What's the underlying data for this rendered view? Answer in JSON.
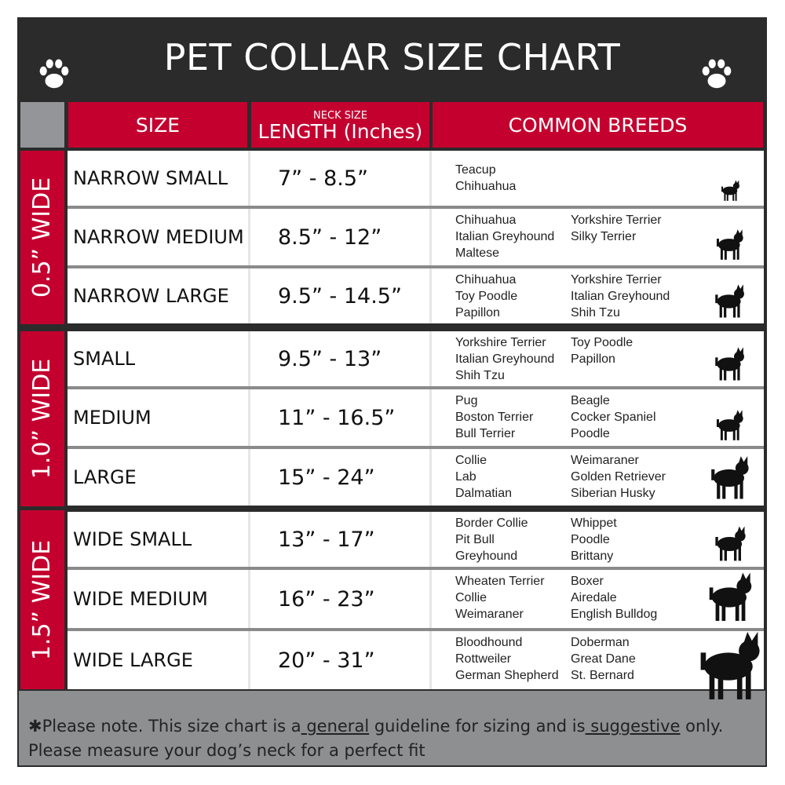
{
  "title": "PET COLLAR SIZE CHART",
  "icons": {
    "left": "paw-print-icon",
    "right": "paw-print-icon",
    "dog": "dog-silhouette-icon"
  },
  "colors": {
    "header_red": "#c4002f",
    "dark": "#2b2b2b",
    "footer_gray": "#8e8f91"
  },
  "headers": {
    "size": "SIZE",
    "length_top": "NECK SIZE",
    "length": "LENGTH (Inches)",
    "breeds": "COMMON BREEDS"
  },
  "groups": [
    "0.5” WIDE",
    "1.0” WIDE",
    "1.5” WIDE"
  ],
  "rows": [
    {
      "size": "NARROW SMALL",
      "length": "7” - 8.5”",
      "breeds_a": [
        "Teacup",
        "Chihuahua"
      ],
      "breeds_b": []
    },
    {
      "size": "NARROW MEDIUM",
      "length": "8.5” - 12”",
      "breeds_a": [
        "Chihuahua",
        "Italian Greyhound",
        "Maltese"
      ],
      "breeds_b": [
        "Yorkshire Terrier",
        "Silky Terrier"
      ]
    },
    {
      "size": "NARROW LARGE",
      "length": "9.5” - 14.5”",
      "breeds_a": [
        "Chihuahua",
        "Toy Poodle",
        "Papillon"
      ],
      "breeds_b": [
        "Yorkshire Terrier",
        "Italian Greyhound",
        "Shih Tzu"
      ]
    },
    {
      "size": "SMALL",
      "length": "9.5” - 13”",
      "breeds_a": [
        "Yorkshire Terrier",
        "Italian Greyhound",
        "Shih Tzu"
      ],
      "breeds_b": [
        "Toy Poodle",
        "Papillon"
      ]
    },
    {
      "size": "MEDIUM",
      "length": "11” - 16.5”",
      "breeds_a": [
        "Pug",
        "Boston Terrier",
        "Bull Terrier"
      ],
      "breeds_b": [
        "Beagle",
        "Cocker Spaniel",
        "Poodle"
      ]
    },
    {
      "size": "LARGE",
      "length": "15” - 24”",
      "breeds_a": [
        "Collie",
        "Lab",
        "Dalmatian"
      ],
      "breeds_b": [
        "Weimaraner",
        "Golden Retriever",
        "Siberian Husky"
      ]
    },
    {
      "size": "WIDE SMALL",
      "length": "13” - 17”",
      "breeds_a": [
        "Border Collie",
        "Pit Bull",
        "Greyhound"
      ],
      "breeds_b": [
        "Whippet",
        "Poodle",
        "Brittany"
      ]
    },
    {
      "size": "WIDE MEDIUM",
      "length": "16” - 23”",
      "breeds_a": [
        "Wheaten Terrier",
        "Collie",
        "Weimaraner"
      ],
      "breeds_b": [
        "Boxer",
        "Airedale",
        "English Bulldog"
      ]
    },
    {
      "size": "WIDE LARGE",
      "length": "20” - 31”",
      "breeds_a": [
        "Bloodhound",
        "Rottweiler",
        "German Shepherd"
      ],
      "breeds_b": [
        "Doberman",
        "Great Dane",
        "St. Bernard"
      ]
    }
  ],
  "footer": {
    "p1": "✱Please note. This size chart is a",
    "u1": " general",
    "p2": " guideline for sizing and is",
    "u2": " suggestive",
    "p3": " only.",
    "line2": "Please measure your dog’s neck for a perfect fit"
  }
}
